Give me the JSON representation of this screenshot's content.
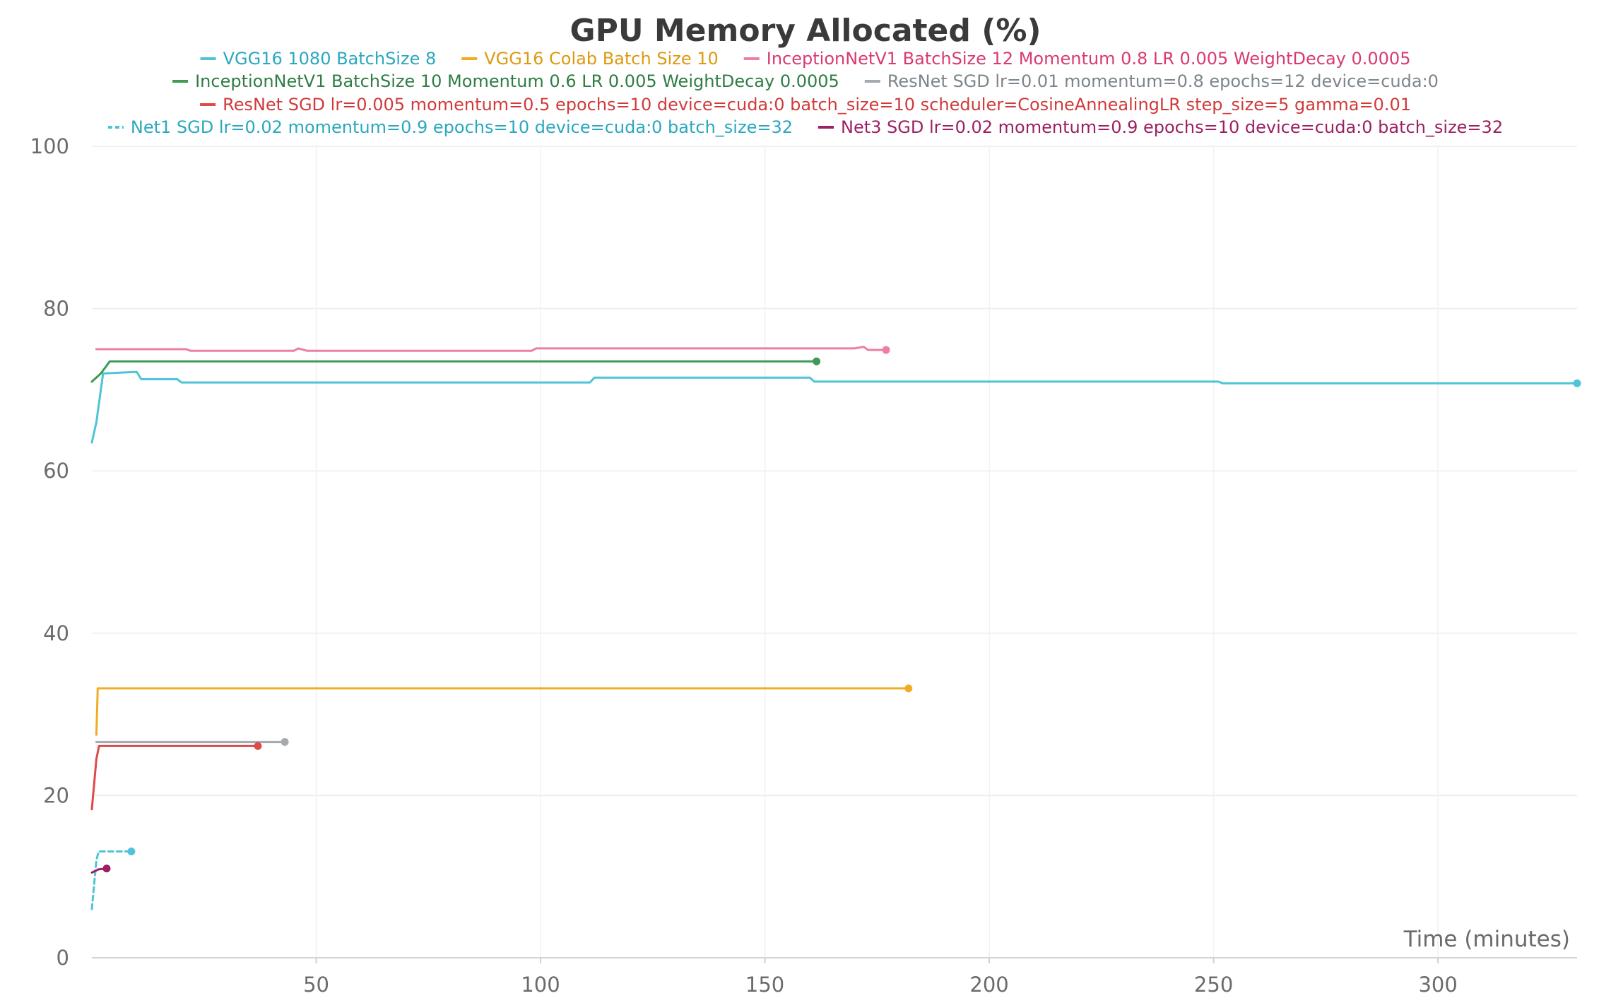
{
  "chart_data": {
    "type": "line",
    "title": "GPU Memory Allocated (%)",
    "xlabel": "Time (minutes)",
    "ylabel": "",
    "xlim": [
      0,
      331
    ],
    "ylim": [
      0,
      100
    ],
    "x_ticks": [
      50,
      100,
      150,
      200,
      250,
      300
    ],
    "y_ticks": [
      0,
      20,
      40,
      60,
      80,
      100
    ],
    "grid": true,
    "legend_position": "top",
    "series": [
      {
        "name": "VGG16 1080 BatchSize 8",
        "color": "#4ec4d6",
        "text_color": "#2aa8c0",
        "dash": "solid",
        "points": [
          [
            0,
            63.5
          ],
          [
            1,
            66
          ],
          [
            2,
            70
          ],
          [
            2.5,
            72
          ],
          [
            10,
            72.2
          ],
          [
            11,
            71.3
          ],
          [
            19,
            71.3
          ],
          [
            20,
            70.9
          ],
          [
            111,
            70.9
          ],
          [
            112,
            71.5
          ],
          [
            160,
            71.5
          ],
          [
            161,
            71
          ],
          [
            251,
            71
          ],
          [
            252,
            70.8
          ],
          [
            331,
            70.8
          ]
        ]
      },
      {
        "name": "VGG16 Colab Batch Size 10",
        "color": "#f0ad24",
        "text_color": "#dd9a10",
        "dash": "solid",
        "points": [
          [
            1,
            27.5
          ],
          [
            1.3,
            33.2
          ],
          [
            182,
            33.2
          ]
        ]
      },
      {
        "name": "InceptionNetV1 BatchSize 12 Momentum 0.8 LR 0.005 WeightDecay 0.0005",
        "color": "#ec7fa3",
        "text_color": "#d93a74",
        "dash": "solid",
        "points": [
          [
            1,
            75
          ],
          [
            21,
            75
          ],
          [
            22,
            74.8
          ],
          [
            45,
            74.8
          ],
          [
            46,
            75.1
          ],
          [
            48,
            74.8
          ],
          [
            98,
            74.8
          ],
          [
            99,
            75.1
          ],
          [
            170,
            75.1
          ],
          [
            172,
            75.3
          ],
          [
            173,
            74.9
          ],
          [
            177,
            74.9
          ]
        ]
      },
      {
        "name": "InceptionNetV1 BatchSize 10 Momentum 0.6 LR 0.005 WeightDecay 0.0005",
        "color": "#3e9a55",
        "text_color": "#2f7d45",
        "dash": "solid",
        "points": [
          [
            0,
            71
          ],
          [
            2,
            72
          ],
          [
            4,
            73.5
          ],
          [
            161.5,
            73.5
          ]
        ]
      },
      {
        "name": "ResNet SGD lr=0.01 momentum=0.8 epochs=12 device=cuda:0",
        "color": "#a4aaaf",
        "text_color": "#7d858c",
        "dash": "solid",
        "points": [
          [
            1,
            26.6
          ],
          [
            43,
            26.6
          ]
        ]
      },
      {
        "name": "ResNet SGD lr=0.005 momentum=0.5 epochs=10 device=cuda:0 batch_size=10 scheduler=CosineAnnealingLR step_size=5 gamma=0.01",
        "color": "#dc4a4a",
        "text_color": "#d13a3a",
        "dash": "solid",
        "points": [
          [
            0,
            18.3
          ],
          [
            1,
            24.5
          ],
          [
            1.6,
            26.1
          ],
          [
            37,
            26.1
          ]
        ]
      },
      {
        "name": "Net1 SGD lr=0.02 momentum=0.9 epochs=10 device=cuda:0 batch_size=32",
        "color": "#4ec4d6",
        "text_color": "#2aa8c0",
        "dash": "dashed",
        "points": [
          [
            0,
            6
          ],
          [
            1,
            12
          ],
          [
            1.5,
            13.1
          ],
          [
            8.8,
            13.1
          ]
        ]
      },
      {
        "name": "Net3 SGD lr=0.02 momentum=0.9 epochs=10 device=cuda:0 batch_size=32",
        "color": "#9c2063",
        "text_color": "#9c2063",
        "dash": "solid",
        "points": [
          [
            0,
            10.5
          ],
          [
            1.5,
            10.9
          ],
          [
            3.3,
            11
          ]
        ]
      }
    ]
  }
}
